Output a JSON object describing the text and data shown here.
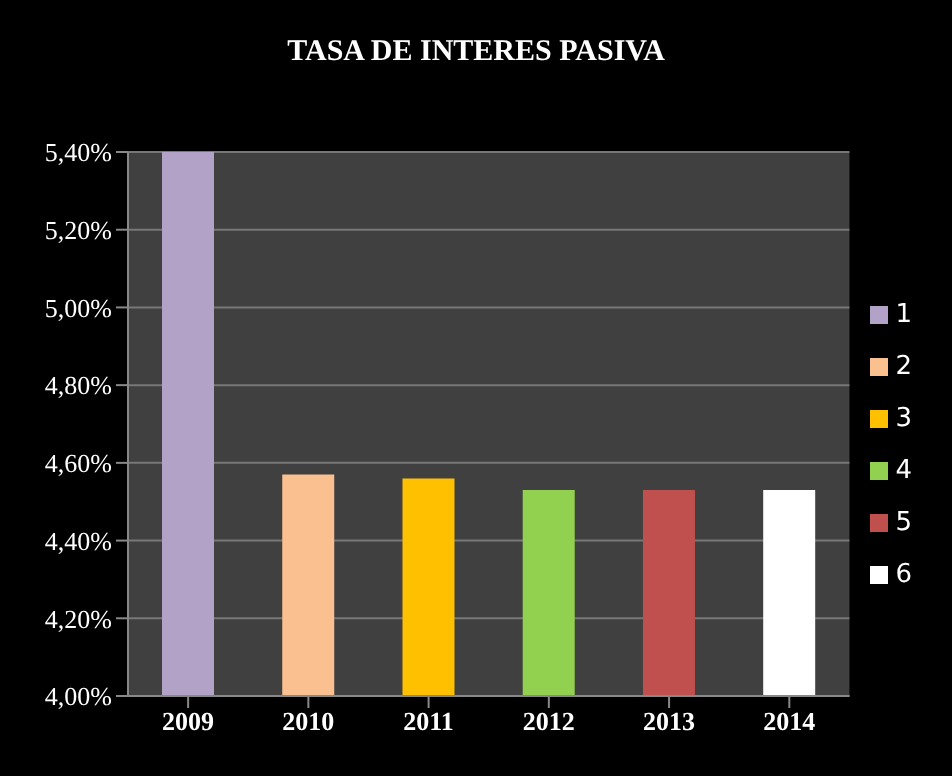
{
  "chart_data": {
    "type": "bar",
    "title": "TASA DE INTERES PASIVA",
    "categories": [
      "2009",
      "2010",
      "2011",
      "2012",
      "2013",
      "2014"
    ],
    "stacked": true,
    "series": [
      {
        "name": "1",
        "color": "#b3a2c7",
        "values": [
          5.4,
          null,
          null,
          null,
          null,
          null
        ]
      },
      {
        "name": "2",
        "color": "#fac08f",
        "values": [
          null,
          4.57,
          null,
          null,
          null,
          null
        ]
      },
      {
        "name": "3",
        "color": "#ffc000",
        "values": [
          null,
          null,
          4.56,
          null,
          null,
          null
        ]
      },
      {
        "name": "4",
        "color": "#92d050",
        "values": [
          null,
          null,
          null,
          4.53,
          null,
          null
        ]
      },
      {
        "name": "5",
        "color": "#c0504d",
        "values": [
          null,
          null,
          null,
          null,
          4.53,
          null
        ]
      },
      {
        "name": "6",
        "color": "#ffffff",
        "values": [
          null,
          null,
          null,
          null,
          null,
          4.53
        ]
      }
    ],
    "ylim": [
      4.0,
      5.4
    ],
    "yticks": [
      {
        "value": 4.0,
        "label": "4,00%"
      },
      {
        "value": 4.2,
        "label": "4,20%"
      },
      {
        "value": 4.4,
        "label": "4,40%"
      },
      {
        "value": 4.6,
        "label": "4,60%"
      },
      {
        "value": 4.8,
        "label": "4,80%"
      },
      {
        "value": 5.0,
        "label": "5,00%"
      },
      {
        "value": 5.2,
        "label": "5,20%"
      },
      {
        "value": 5.4,
        "label": "5,40%"
      }
    ],
    "grid": "y",
    "legend": "right"
  }
}
